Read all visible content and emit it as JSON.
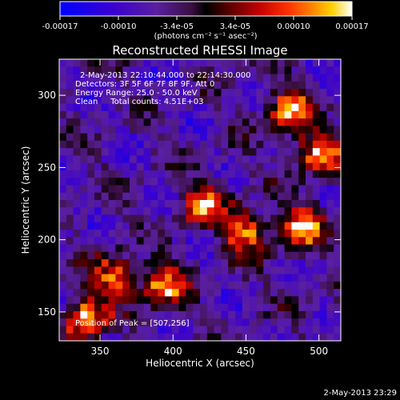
{
  "chart_data": {
    "type": "heatmap",
    "title": "Reconstructed RHESSI Image",
    "xlabel": "Heliocentric X (arcsec)",
    "ylabel": "Heliocentric Y (arcsec)",
    "xlim": [
      322,
      515
    ],
    "ylim": [
      130,
      325
    ],
    "x_ticks": [
      350,
      400,
      450,
      500
    ],
    "y_ticks": [
      150,
      200,
      250,
      300
    ],
    "x_tick_labels": [
      "350",
      "400",
      "450",
      "500"
    ],
    "y_tick_labels": [
      "150",
      "200",
      "250",
      "300"
    ],
    "colorbar": {
      "range": [
        -0.00017,
        0.00017
      ],
      "tick_labels": [
        "-0.00017",
        "-0.00010",
        "-3.4e-05",
        "3.4e-05",
        "0.00010",
        "0.00017"
      ],
      "unit_label": "(photons cm⁻² s⁻¹ asec⁻²)",
      "colormap": [
        "#0000ff",
        "#3a00d0",
        "#5a1fa0",
        "#3a0f40",
        "#000000",
        "#5a0000",
        "#c00000",
        "#ff3000",
        "#ff8000",
        "#ffd000",
        "#ffffff"
      ]
    },
    "annotations": [
      "2-May-2013 22:10:44.000 to 22:14:30.000",
      "Detectors: 3F 5F 6F 7F 8F 9F, Att 0",
      "Energy Range: 25.0 - 50.0 keV",
      "Clean     Total counts: 4.51E+03",
      "Position of Peak = [507,256]"
    ],
    "intensity_grid_rows": 38,
    "intensity_grid_cols": 40,
    "bright_regions_xy": [
      [
        480,
        290
      ],
      [
        500,
        260
      ],
      [
        490,
        210
      ],
      [
        450,
        205
      ],
      [
        420,
        225
      ],
      [
        360,
        175
      ],
      [
        340,
        145
      ],
      [
        395,
        168
      ]
    ],
    "peak": [
      507,
      256
    ]
  },
  "footer_timestamp": "2-May-2013 23:29"
}
